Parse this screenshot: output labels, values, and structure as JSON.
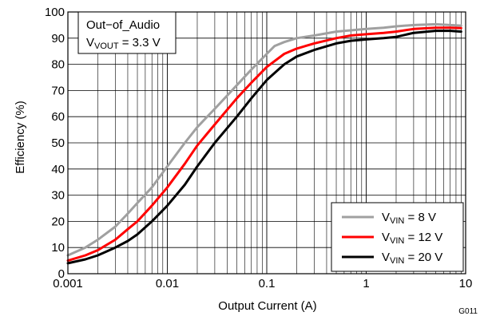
{
  "chart_data": {
    "type": "line",
    "figure_id": "G011",
    "xlabel": "Output Current (A)",
    "ylabel": "Efficiency (%)",
    "x_scale": "log",
    "xlim": [
      0.001,
      10
    ],
    "ylim": [
      0,
      100
    ],
    "x_ticks": [
      {
        "value": 0.001,
        "label": "0.001"
      },
      {
        "value": 0.01,
        "label": "0.01"
      },
      {
        "value": 0.1,
        "label": "0.1"
      },
      {
        "value": 1,
        "label": "1"
      },
      {
        "value": 10,
        "label": "10"
      }
    ],
    "y_ticks": [
      0,
      10,
      20,
      30,
      40,
      50,
      60,
      70,
      80,
      90,
      100
    ],
    "grid": true,
    "annotation": {
      "line1": "Out−of_Audio",
      "line2_prefix": "V",
      "line2_sub": "VOUT",
      "line2_suffix": " = 3.3 V"
    },
    "legend_position": "bottom-right",
    "series": [
      {
        "name_prefix": "V",
        "name_sub": "VIN",
        "name_suffix": " = 8 V",
        "color": "#a0a0a0",
        "points": [
          [
            0.001,
            7
          ],
          [
            0.0015,
            10
          ],
          [
            0.002,
            13
          ],
          [
            0.003,
            18
          ],
          [
            0.004,
            23
          ],
          [
            0.005,
            27
          ],
          [
            0.007,
            33
          ],
          [
            0.01,
            41
          ],
          [
            0.015,
            50
          ],
          [
            0.02,
            56
          ],
          [
            0.03,
            63
          ],
          [
            0.05,
            72
          ],
          [
            0.07,
            78
          ],
          [
            0.1,
            84
          ],
          [
            0.12,
            87
          ],
          [
            0.15,
            88.5
          ],
          [
            0.2,
            90
          ],
          [
            0.3,
            91
          ],
          [
            0.5,
            92.5
          ],
          [
            0.7,
            93
          ],
          [
            1,
            93.5
          ],
          [
            1.5,
            94
          ],
          [
            2,
            94.5
          ],
          [
            3,
            95
          ],
          [
            5,
            95.3
          ],
          [
            7,
            95
          ],
          [
            9,
            94.8
          ]
        ]
      },
      {
        "name_prefix": "V",
        "name_sub": "VIN",
        "name_suffix": " = 12 V",
        "color": "#ff0000",
        "points": [
          [
            0.001,
            5
          ],
          [
            0.0015,
            7
          ],
          [
            0.002,
            9
          ],
          [
            0.003,
            13
          ],
          [
            0.004,
            17
          ],
          [
            0.005,
            20
          ],
          [
            0.007,
            26
          ],
          [
            0.01,
            33
          ],
          [
            0.015,
            42
          ],
          [
            0.02,
            49
          ],
          [
            0.03,
            57
          ],
          [
            0.05,
            67
          ],
          [
            0.07,
            73
          ],
          [
            0.1,
            79
          ],
          [
            0.15,
            84
          ],
          [
            0.2,
            86
          ],
          [
            0.3,
            88
          ],
          [
            0.5,
            90
          ],
          [
            0.7,
            91
          ],
          [
            1,
            91.5
          ],
          [
            1.5,
            92
          ],
          [
            2,
            92.5
          ],
          [
            3,
            93.5
          ],
          [
            5,
            94
          ],
          [
            7,
            94
          ],
          [
            9,
            93.8
          ]
        ]
      },
      {
        "name_prefix": "V",
        "name_sub": "VIN",
        "name_suffix": " = 20 V",
        "color": "#000000",
        "points": [
          [
            0.001,
            4
          ],
          [
            0.0015,
            5.5
          ],
          [
            0.002,
            7
          ],
          [
            0.003,
            10
          ],
          [
            0.004,
            12.5
          ],
          [
            0.005,
            15
          ],
          [
            0.007,
            20
          ],
          [
            0.01,
            26
          ],
          [
            0.015,
            34
          ],
          [
            0.02,
            41
          ],
          [
            0.03,
            50
          ],
          [
            0.05,
            60
          ],
          [
            0.07,
            67
          ],
          [
            0.1,
            74
          ],
          [
            0.15,
            80
          ],
          [
            0.2,
            83
          ],
          [
            0.3,
            85.5
          ],
          [
            0.5,
            88
          ],
          [
            0.7,
            89
          ],
          [
            1,
            89.5
          ],
          [
            1.5,
            90
          ],
          [
            2,
            90.5
          ],
          [
            3,
            92
          ],
          [
            5,
            92.8
          ],
          [
            7,
            92.8
          ],
          [
            9,
            92.5
          ]
        ]
      }
    ]
  }
}
